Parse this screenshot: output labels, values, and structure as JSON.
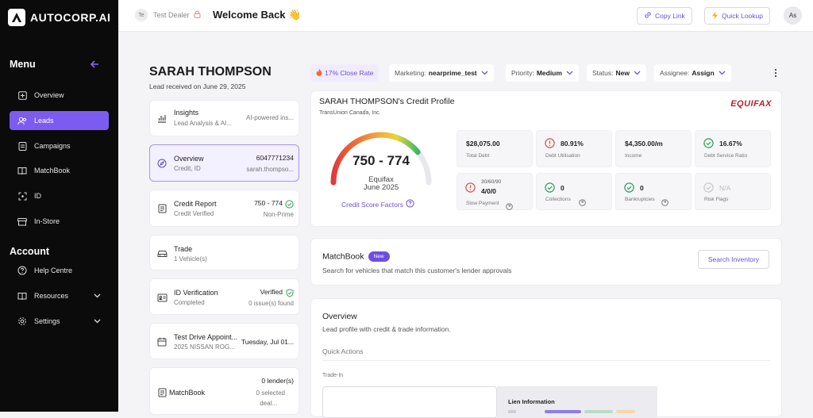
{
  "app": {
    "logo_text": "AUTOCORP.AI"
  },
  "sidebar": {
    "menu_title": "Menu",
    "items": [
      {
        "label": "Overview"
      },
      {
        "label": "Leads"
      },
      {
        "label": "Campaigns"
      },
      {
        "label": "MatchBook"
      },
      {
        "label": "ID"
      },
      {
        "label": "In-Store"
      }
    ],
    "account_title": "Account",
    "account_items": [
      {
        "label": "Help Centre"
      },
      {
        "label": "Resources"
      },
      {
        "label": "Settings"
      }
    ]
  },
  "topbar": {
    "avatar_initials": "Te",
    "dealer": "Test Dealer",
    "welcome": "Welcome Back 👋",
    "copy_link": "Copy Link",
    "quick_lookup": "Quick Lookup",
    "user_initials": "As"
  },
  "lead": {
    "name": "SARAH THOMPSON",
    "received": "Lead received on June 29, 2025"
  },
  "lead_cards": {
    "insights": {
      "title": "Insights",
      "sub": "Lead Analysis & AI...",
      "right": "AI-powered ins..."
    },
    "overview": {
      "title": "Overview",
      "sub": "Credit, ID",
      "phone": "6047771234",
      "email": "sarah.thompso..."
    },
    "credit": {
      "title": "Credit Report",
      "sub": "Credit Verified",
      "score": "750 - 774",
      "tier": "Non-Prime"
    },
    "trade": {
      "title": "Trade",
      "sub": "1 Vehicle(s)"
    },
    "idv": {
      "title": "ID Verification",
      "sub": "Completed",
      "status": "Verified",
      "issues": "0 issue(s) found"
    },
    "testdrive": {
      "title": "Test Drive Appoint...",
      "sub": "2025 NISSAN ROG...",
      "date": "Tuesday, Jul 01..."
    },
    "matchbook": {
      "title": "MatchBook",
      "lenders": "0 lender(s)",
      "selected": "0 selected",
      "deal": "deal..."
    }
  },
  "filters": {
    "close_rate": "17% Close Rate",
    "marketing_label": "Marketing:",
    "marketing_value": "nearprime_test",
    "priority_label": "Priority:",
    "priority_value": "Medium",
    "status_label": "Status:",
    "status_value": "New",
    "assignee_label": "Assignee:",
    "assignee_value": "Assign"
  },
  "credit_profile": {
    "title": "SARAH THOMPSON's Credit Profile",
    "bureau_sub": "TransUnion Canada, Inc.",
    "logo_text": "EQUIFAX",
    "score_range": "750 - 774",
    "source": "Equifax",
    "date": "June 2025",
    "factors_link": "Credit Score Factors",
    "score_fraction": 0.78,
    "stats": [
      {
        "value": "$28,075.00",
        "label": "Total Debt",
        "icon": ""
      },
      {
        "value": "80.91%",
        "label": "Debt Utilisation",
        "icon": "alert"
      },
      {
        "value": "$4,350.00/m",
        "label": "Income",
        "icon": ""
      },
      {
        "value": "16.67%",
        "label": "Debt Service Ratio",
        "icon": "check"
      },
      {
        "value": "4/0/0",
        "pre": "30/60/90",
        "label": "Slow Payment",
        "icon": "alert"
      },
      {
        "value": "0",
        "label": "Collections",
        "icon": "check"
      },
      {
        "value": "0",
        "label": "Bankruptcies",
        "icon": "check"
      },
      {
        "value": "N/A",
        "label": "Risk Flags",
        "icon": "check-muted"
      }
    ]
  },
  "matchbook_section": {
    "title": "MatchBook",
    "badge": "New",
    "desc": "Search for vehicles that match this customer's lender approvals",
    "button": "Search Inventory"
  },
  "overview_section": {
    "title": "Overview",
    "desc": "Lead profile with credit & trade information.",
    "quick_actions": "Quick Actions",
    "trade_in": "Trade-In",
    "lien_title": "Lien Information"
  },
  "colors": {
    "accent": "#7c5cf0",
    "danger": "#d9534f",
    "success": "#2e9e5b"
  }
}
